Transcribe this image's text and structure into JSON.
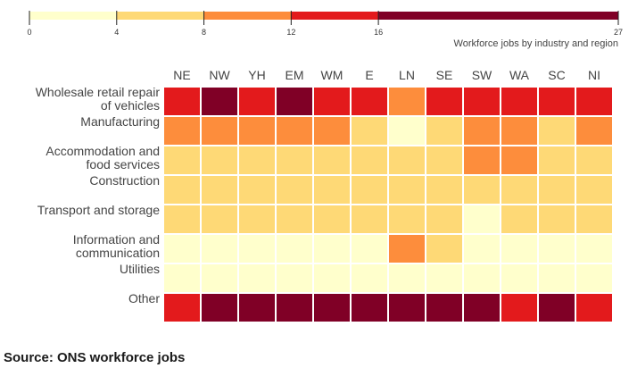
{
  "chart_data": {
    "type": "heatmap",
    "legend_title": "Workforce jobs by industry and region",
    "legend": {
      "thresholds": [
        0,
        4,
        8,
        12,
        16,
        27
      ],
      "tick_labels": [
        "0",
        "4",
        "8",
        "12",
        "16",
        "27"
      ],
      "colors": [
        "#ffffcc",
        "#fed976",
        "#fd8d3c",
        "#e31a1c",
        "#800026"
      ]
    },
    "columns": [
      "NE",
      "NW",
      "YH",
      "EM",
      "WM",
      "E",
      "LN",
      "SE",
      "SW",
      "WA",
      "SC",
      "NI"
    ],
    "rows": [
      {
        "label_lines": [
          "Wholesale retail repair",
          "of vehicles"
        ],
        "values": [
          14,
          18,
          14,
          18,
          14,
          14,
          10,
          14,
          14,
          14,
          14,
          14
        ]
      },
      {
        "label_lines": [
          "Manufacturing"
        ],
        "values": [
          10,
          10,
          10,
          10,
          10,
          6,
          2,
          6,
          10,
          10,
          6,
          10
        ]
      },
      {
        "label_lines": [
          "Accommodation and",
          "food services"
        ],
        "values": [
          6,
          6,
          6,
          6,
          6,
          6,
          6,
          6,
          10,
          10,
          6,
          6
        ]
      },
      {
        "label_lines": [
          "Construction"
        ],
        "values": [
          6,
          6,
          6,
          6,
          6,
          6,
          6,
          6,
          6,
          6,
          6,
          6
        ]
      },
      {
        "label_lines": [
          "Transport and storage"
        ],
        "values": [
          6,
          6,
          6,
          6,
          6,
          6,
          6,
          6,
          2,
          6,
          6,
          6
        ]
      },
      {
        "label_lines": [
          "Information and",
          "communication"
        ],
        "values": [
          2,
          2,
          2,
          2,
          2,
          2,
          10,
          6,
          2,
          2,
          2,
          2
        ]
      },
      {
        "label_lines": [
          "Utilities"
        ],
        "values": [
          2,
          2,
          2,
          2,
          2,
          2,
          2,
          2,
          2,
          2,
          2,
          2
        ]
      },
      {
        "label_lines": [
          "Other"
        ],
        "values": [
          14,
          20,
          20,
          20,
          20,
          20,
          20,
          20,
          20,
          14,
          20,
          14
        ]
      }
    ]
  },
  "source": "Source: ONS workforce jobs"
}
